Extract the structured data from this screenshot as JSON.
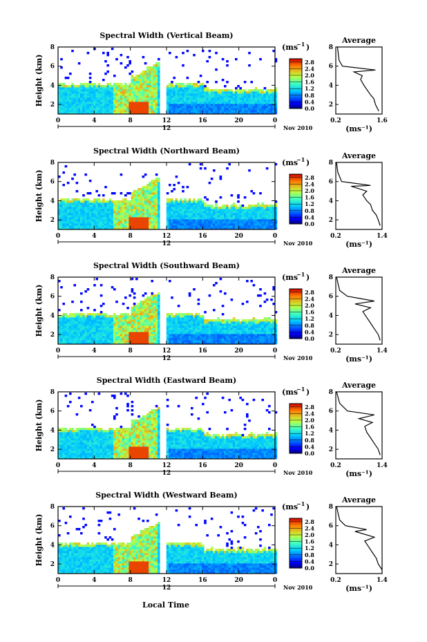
{
  "figure": {
    "bottom_xlabel": "Local Time",
    "date_label": "Nov 2010",
    "day_label": "12",
    "unit_label": "(ms",
    "unit_exp": "−1",
    "avg_title": "Average",
    "height_label": "Height (km)"
  },
  "chart_data": [
    {
      "type": "heatmap",
      "title": "Spectral Width (Vertical Beam)",
      "ylabel": "Height (km)",
      "x_ticks": [
        "0",
        "4",
        "8",
        "12",
        "16",
        "20",
        "0"
      ],
      "y_ticks": [
        "2",
        "4",
        "6",
        "8"
      ],
      "xlim": [
        0,
        24
      ],
      "ylim": [
        1,
        8
      ],
      "colorbar_ticks": [
        "0.0",
        "0.4",
        "0.8",
        "1.2",
        "1.6",
        "2.0",
        "2.4",
        "2.8"
      ],
      "colorbar_range": [
        0,
        3.0
      ],
      "average": {
        "title": "Average",
        "x_ticks": [
          "0.2",
          "1.6"
        ],
        "xlim": [
          0.2,
          1.6
        ],
        "y_ticks": [
          "2",
          "4",
          "6",
          "8"
        ],
        "ylim": [
          1,
          8
        ],
        "xlabel": "(ms⁻¹)",
        "profile": [
          [
            1.5,
            1.3
          ],
          [
            1.4,
            2.0
          ],
          [
            1.35,
            2.6
          ],
          [
            1.25,
            3.0
          ],
          [
            1.15,
            3.5
          ],
          [
            1.05,
            4.0
          ],
          [
            0.95,
            4.6
          ],
          [
            1.0,
            5.0
          ],
          [
            0.75,
            5.4
          ],
          [
            1.4,
            5.6
          ],
          [
            0.4,
            6.0
          ],
          [
            0.3,
            6.6
          ],
          [
            0.25,
            8.0
          ]
        ]
      }
    },
    {
      "type": "heatmap",
      "title": "Spectral Width (Northward Beam)",
      "ylabel": "Height (km)",
      "x_ticks": [
        "0",
        "4",
        "8",
        "12",
        "16",
        "20",
        "0"
      ],
      "y_ticks": [
        "2",
        "4",
        "6",
        "8"
      ],
      "xlim": [
        0,
        24
      ],
      "ylim": [
        1,
        8
      ],
      "colorbar_ticks": [
        "0.0",
        "0.4",
        "0.8",
        "1.2",
        "1.6",
        "2.0",
        "2.4",
        "2.8"
      ],
      "colorbar_range": [
        0,
        3.0
      ],
      "average": {
        "title": "Average",
        "x_ticks": [
          "0.2",
          "1.4"
        ],
        "xlim": [
          0.2,
          1.4
        ],
        "y_ticks": [
          "2",
          "4",
          "6",
          "8"
        ],
        "ylim": [
          1,
          8
        ],
        "xlabel": "(ms⁻¹)",
        "profile": [
          [
            1.35,
            1.4
          ],
          [
            1.3,
            2.0
          ],
          [
            1.25,
            2.5
          ],
          [
            1.15,
            3.0
          ],
          [
            1.1,
            3.6
          ],
          [
            1.0,
            4.0
          ],
          [
            0.9,
            4.6
          ],
          [
            1.0,
            5.0
          ],
          [
            0.6,
            5.5
          ],
          [
            1.1,
            5.6
          ],
          [
            0.35,
            6.0
          ],
          [
            0.25,
            7.0
          ],
          [
            0.22,
            8.0
          ]
        ]
      }
    },
    {
      "type": "heatmap",
      "title": "Spectral Width (Southward Beam)",
      "ylabel": "Height (km)",
      "x_ticks": [
        "0",
        "4",
        "8",
        "12",
        "16",
        "20",
        "0"
      ],
      "y_ticks": [
        "2",
        "4",
        "6",
        "8"
      ],
      "xlim": [
        0,
        24
      ],
      "ylim": [
        1,
        8
      ],
      "colorbar_ticks": [
        "0.0",
        "0.4",
        "0.8",
        "1.2",
        "1.6",
        "2.0",
        "2.4",
        "2.8"
      ],
      "colorbar_range": [
        0,
        3.0
      ],
      "average": {
        "title": "Average",
        "x_ticks": [
          "0.2",
          "1.4"
        ],
        "xlim": [
          0.2,
          1.4
        ],
        "y_ticks": [
          "2",
          "4",
          "6",
          "8"
        ],
        "ylim": [
          1,
          8
        ],
        "xlabel": "(ms⁻¹)",
        "profile": [
          [
            1.35,
            1.4
          ],
          [
            1.3,
            2.0
          ],
          [
            1.2,
            2.6
          ],
          [
            1.1,
            3.2
          ],
          [
            1.0,
            3.8
          ],
          [
            0.9,
            4.4
          ],
          [
            1.1,
            4.8
          ],
          [
            0.7,
            5.2
          ],
          [
            1.2,
            5.5
          ],
          [
            0.5,
            6.0
          ],
          [
            0.3,
            6.6
          ],
          [
            0.22,
            8.0
          ]
        ]
      }
    },
    {
      "type": "heatmap",
      "title": "Spectral Width (Eastward Beam)",
      "ylabel": "Height (km)",
      "x_ticks": [
        "0",
        "4",
        "8",
        "12",
        "16",
        "20",
        "0"
      ],
      "y_ticks": [
        "2",
        "4",
        "6",
        "8"
      ],
      "xlim": [
        0,
        24
      ],
      "ylim": [
        1,
        8
      ],
      "colorbar_ticks": [
        "0.0",
        "0.4",
        "0.8",
        "1.2",
        "1.6",
        "2.0",
        "2.4",
        "2.8"
      ],
      "colorbar_range": [
        0,
        3.0
      ],
      "average": {
        "title": "Average",
        "x_ticks": [
          "0.2",
          "1.4"
        ],
        "xlim": [
          0.2,
          1.4
        ],
        "y_ticks": [
          "2",
          "4",
          "6",
          "8"
        ],
        "ylim": [
          1,
          8
        ],
        "xlabel": "(ms⁻¹)",
        "profile": [
          [
            1.35,
            1.4
          ],
          [
            1.3,
            2.0
          ],
          [
            1.2,
            2.6
          ],
          [
            1.1,
            3.2
          ],
          [
            1.0,
            3.8
          ],
          [
            0.95,
            4.4
          ],
          [
            1.15,
            4.8
          ],
          [
            0.8,
            5.2
          ],
          [
            1.2,
            5.6
          ],
          [
            0.5,
            6.0
          ],
          [
            0.3,
            6.8
          ],
          [
            0.22,
            8.0
          ]
        ]
      }
    },
    {
      "type": "heatmap",
      "title": "Spectral Width (Westward Beam)",
      "ylabel": "Height (km)",
      "x_ticks": [
        "0",
        "4",
        "8",
        "12",
        "16",
        "20",
        "0"
      ],
      "y_ticks": [
        "2",
        "4",
        "6",
        "8"
      ],
      "xlim": [
        0,
        24
      ],
      "ylim": [
        1,
        8
      ],
      "colorbar_ticks": [
        "0.0",
        "0.4",
        "0.8",
        "1.2",
        "1.6",
        "2.0",
        "2.4",
        "2.8"
      ],
      "colorbar_range": [
        0,
        3.0
      ],
      "average": {
        "title": "Average",
        "x_ticks": [
          "0.2",
          "1.4"
        ],
        "xlim": [
          0.2,
          1.4
        ],
        "y_ticks": [
          "2",
          "4",
          "6",
          "8"
        ],
        "ylim": [
          1,
          8
        ],
        "xlabel": "(ms⁻¹)",
        "profile": [
          [
            1.4,
            1.4
          ],
          [
            1.3,
            2.0
          ],
          [
            1.25,
            2.6
          ],
          [
            1.15,
            3.2
          ],
          [
            1.05,
            3.8
          ],
          [
            0.95,
            4.4
          ],
          [
            1.2,
            4.8
          ],
          [
            0.7,
            5.4
          ],
          [
            1.0,
            5.6
          ],
          [
            0.45,
            6.0
          ],
          [
            0.3,
            6.6
          ],
          [
            0.22,
            8.0
          ]
        ]
      }
    }
  ]
}
